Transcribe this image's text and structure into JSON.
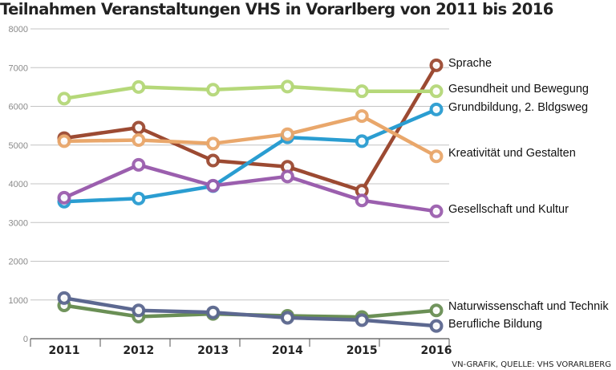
{
  "chart_data": {
    "type": "line",
    "title": "Teilnahmen Veranstaltungen VHS in Vorarlberg von 2011 bis 2016",
    "xlabel": "",
    "ylabel": "",
    "x": [
      "2011",
      "2012",
      "2013",
      "2014",
      "2015",
      "2016"
    ],
    "ylim": [
      0,
      8000
    ],
    "yticks": [
      0,
      1000,
      2000,
      3000,
      4000,
      5000,
      6000,
      7000,
      8000
    ],
    "grid": true,
    "series": [
      {
        "name": "Sprache",
        "color": "#9c4a32",
        "values": [
          5180,
          5450,
          4600,
          4440,
          3820,
          7060
        ]
      },
      {
        "name": "Gesundheit und Bewegung",
        "color": "#b5d879",
        "values": [
          6200,
          6500,
          6430,
          6510,
          6390,
          6390
        ]
      },
      {
        "name": "Grundbildung, 2. Bldgsweg",
        "color": "#2a9dd1",
        "values": [
          3540,
          3620,
          3940,
          5200,
          5100,
          5920
        ]
      },
      {
        "name": "Kreativität und Gestalten",
        "color": "#e9a76b",
        "values": [
          5100,
          5130,
          5040,
          5280,
          5750,
          4710
        ]
      },
      {
        "name": "Gesellschaft und Kultur",
        "color": "#9b5fae",
        "values": [
          3640,
          4490,
          3950,
          4190,
          3570,
          3290
        ]
      },
      {
        "name": "Naturwissenschaft und Technik",
        "color": "#6a8f55",
        "values": [
          860,
          570,
          640,
          590,
          560,
          730
        ]
      },
      {
        "name": "Berufliche Bildung",
        "color": "#5c6890",
        "values": [
          1050,
          730,
          680,
          540,
          480,
          330
        ]
      }
    ],
    "source": "VN-GRAFIK, QUELLE: VHS VORARLBERG"
  }
}
